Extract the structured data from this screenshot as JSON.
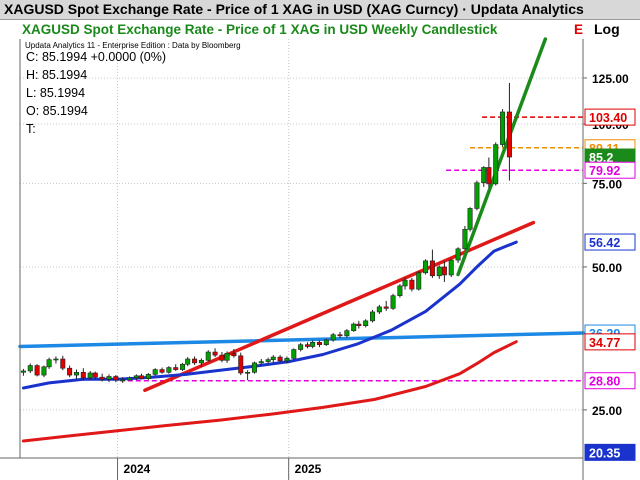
{
  "window_title": "XAGUSD Spot Exchange Rate - Price of 1 XAG in USD (XAG Curncy) · Updata Analytics",
  "chart_title": "XAGUSD Spot Exchange Rate - Price of 1 XAG in USD Weekly Candlestick",
  "chart_title_suffix": "E",
  "scale_label": "Log",
  "credit": "Updata Analytics 11 - Enterprise Edition : Data by Bloomberg",
  "ohlc": {
    "close": "C: 85.1994  +0.0000 (0%)",
    "high": "H: 85.1994",
    "low": "L: 85.1994",
    "open": "O: 85.1994",
    "time": "T:"
  },
  "colors": {
    "up": "#00a000",
    "down": "#e00000",
    "blue_ma": "#1a33cc",
    "red_ma": "#e01818",
    "green_trend": "#1a8a1a",
    "red_trend": "#e01818",
    "blue_trend": "#1e88e5",
    "orange": "#f08c00",
    "magenta": "#e000e0"
  },
  "chart_data": {
    "type": "candlestick",
    "title": "XAGUSD Spot Exchange Rate - Price of 1 XAG in USD Weekly Candlestick",
    "y_scale": "log",
    "ylim": [
      19.8,
      151
    ],
    "y_ticks": [
      25,
      50,
      75,
      100,
      125
    ],
    "y_tick_labels": [
      "25.00",
      "50.00",
      "75.00",
      "100.00",
      "125.00"
    ],
    "x_labels": [
      {
        "label": "2024",
        "t": 2024.0
      },
      {
        "label": "2025",
        "t": 2025.0
      }
    ],
    "xlim": [
      2023.43,
      2026.72
    ],
    "grid": true,
    "price_labels": [
      {
        "value": 103.4,
        "text": "103.40",
        "bg": "#ffffff",
        "fg": "#e00000",
        "border": "#e00000",
        "line": {
          "color": "#e00000",
          "style": "dashed",
          "from": 2026.13
        }
      },
      {
        "value": 89.11,
        "text": "89.11",
        "bg": "#ffffff",
        "fg": "#f08c00",
        "border": "#f08c00",
        "line": {
          "color": "#f08c00",
          "style": "dashed",
          "from": 2026.06
        }
      },
      {
        "value": 85.2,
        "text": "85.2",
        "bg": "#1a8a1a",
        "fg": "#ffffff",
        "border": "#1a8a1a"
      },
      {
        "value": 79.92,
        "text": "79.92",
        "bg": "#ffffff",
        "fg": "#e000e0",
        "border": "#e000e0",
        "line": {
          "color": "#e000e0",
          "style": "dashed",
          "from": 2025.92
        }
      },
      {
        "value": 56.42,
        "text": "56.42",
        "bg": "#ffffff",
        "fg": "#1a33cc",
        "border": "#1a33cc"
      },
      {
        "value": 36.29,
        "text": "36.29",
        "bg": "#ffffff",
        "fg": "#1e88e5",
        "border": "#1e88e5"
      },
      {
        "value": 34.77,
        "text": "34.77",
        "bg": "#ffffff",
        "fg": "#e00000",
        "border": "#e00000"
      },
      {
        "value": 28.8,
        "text": "28.80",
        "bg": "#ffffff",
        "fg": "#e000e0",
        "border": "#e000e0",
        "line": {
          "color": "#e000e0",
          "style": "dashed",
          "from": 2024.06
        }
      },
      {
        "value": 20.35,
        "text": "20.35",
        "bg": "#1a33cc",
        "fg": "#ffffff",
        "border": "#1a33cc"
      }
    ],
    "candles": [
      [
        2023.45,
        30.0,
        30.5,
        29.5,
        30.2
      ],
      [
        2023.49,
        30.2,
        31.3,
        29.9,
        31.0
      ],
      [
        2023.53,
        31.0,
        31.2,
        29.4,
        29.6
      ],
      [
        2023.57,
        29.6,
        31.0,
        29.3,
        30.8
      ],
      [
        2023.6,
        30.8,
        32.2,
        30.5,
        31.9
      ],
      [
        2023.64,
        31.9,
        32.4,
        31.3,
        32.0
      ],
      [
        2023.68,
        32.0,
        32.5,
        30.3,
        30.6
      ],
      [
        2023.72,
        30.6,
        31.0,
        29.3,
        29.6
      ],
      [
        2023.76,
        29.6,
        30.4,
        29.0,
        30.0
      ],
      [
        2023.8,
        30.0,
        30.6,
        28.8,
        29.2
      ],
      [
        2023.84,
        29.2,
        30.2,
        28.9,
        29.9
      ],
      [
        2023.87,
        29.9,
        30.1,
        29.0,
        29.3
      ],
      [
        2023.91,
        29.3,
        29.8,
        28.7,
        29.0
      ],
      [
        2023.95,
        29.0,
        29.7,
        28.6,
        29.4
      ],
      [
        2023.99,
        29.4,
        29.6,
        28.6,
        28.9
      ],
      [
        2024.03,
        28.9,
        29.3,
        28.5,
        28.9
      ],
      [
        2024.07,
        28.9,
        29.4,
        28.8,
        29.2
      ],
      [
        2024.11,
        29.2,
        29.7,
        28.9,
        29.5
      ],
      [
        2024.14,
        29.5,
        29.8,
        29.0,
        29.1
      ],
      [
        2024.18,
        29.1,
        29.9,
        28.9,
        29.7
      ],
      [
        2024.22,
        29.7,
        30.6,
        29.5,
        30.4
      ],
      [
        2024.26,
        30.4,
        30.7,
        29.8,
        30.0
      ],
      [
        2024.3,
        30.0,
        30.9,
        29.8,
        30.7
      ],
      [
        2024.34,
        30.7,
        31.2,
        30.2,
        30.4
      ],
      [
        2024.38,
        30.4,
        31.4,
        30.2,
        31.2
      ],
      [
        2024.41,
        31.2,
        32.3,
        30.9,
        32.0
      ],
      [
        2024.45,
        32.0,
        32.4,
        31.1,
        31.4
      ],
      [
        2024.49,
        31.4,
        32.1,
        30.8,
        31.8
      ],
      [
        2024.53,
        31.8,
        33.4,
        31.6,
        33.1
      ],
      [
        2024.57,
        33.1,
        33.7,
        32.3,
        32.6
      ],
      [
        2024.61,
        32.6,
        33.1,
        31.5,
        31.8
      ],
      [
        2024.64,
        31.8,
        33.2,
        31.4,
        32.9
      ],
      [
        2024.68,
        32.9,
        33.6,
        32.2,
        32.5
      ],
      [
        2024.72,
        32.5,
        33.0,
        29.6,
        29.9
      ],
      [
        2024.76,
        29.9,
        30.3,
        28.9,
        30.0
      ],
      [
        2024.8,
        30.0,
        31.6,
        29.8,
        31.4
      ],
      [
        2024.84,
        31.4,
        32.0,
        31.0,
        31.6
      ],
      [
        2024.88,
        31.6,
        32.2,
        31.3,
        31.9
      ],
      [
        2024.91,
        31.9,
        32.6,
        31.4,
        32.3
      ],
      [
        2024.95,
        32.3,
        32.6,
        31.5,
        31.7
      ],
      [
        2024.99,
        31.7,
        32.4,
        31.3,
        32.1
      ],
      [
        2025.03,
        32.1,
        33.7,
        31.9,
        33.5
      ],
      [
        2025.07,
        33.5,
        34.6,
        33.2,
        34.3
      ],
      [
        2025.11,
        34.3,
        34.7,
        33.7,
        34.0
      ],
      [
        2025.14,
        34.0,
        35.0,
        33.7,
        34.7
      ],
      [
        2025.18,
        34.7,
        35.0,
        33.9,
        34.3
      ],
      [
        2025.22,
        34.3,
        35.3,
        34.1,
        35.1
      ],
      [
        2025.26,
        35.1,
        36.3,
        34.8,
        36.0
      ],
      [
        2025.3,
        36.0,
        36.5,
        35.4,
        35.8
      ],
      [
        2025.34,
        35.8,
        37.0,
        35.5,
        36.7
      ],
      [
        2025.38,
        36.7,
        38.2,
        36.5,
        37.9
      ],
      [
        2025.41,
        37.9,
        38.5,
        37.1,
        37.6
      ],
      [
        2025.45,
        37.6,
        38.8,
        37.3,
        38.5
      ],
      [
        2025.49,
        38.5,
        40.6,
        38.2,
        40.2
      ],
      [
        2025.53,
        40.2,
        41.6,
        39.8,
        41.2
      ],
      [
        2025.57,
        41.2,
        42.4,
        40.4,
        40.9
      ],
      [
        2025.61,
        40.9,
        43.9,
        40.6,
        43.5
      ],
      [
        2025.65,
        43.5,
        46.0,
        43.1,
        45.6
      ],
      [
        2025.68,
        45.6,
        47.5,
        44.8,
        46.9
      ],
      [
        2025.72,
        46.9,
        47.4,
        44.4,
        44.9
      ],
      [
        2025.76,
        44.9,
        49.0,
        44.6,
        48.6
      ],
      [
        2025.8,
        48.6,
        51.9,
        48.2,
        51.5
      ],
      [
        2025.84,
        51.5,
        54.4,
        47.4,
        47.9
      ],
      [
        2025.88,
        47.9,
        50.4,
        47.2,
        50.0
      ],
      [
        2025.91,
        50.0,
        51.4,
        46.5,
        48.1
      ],
      [
        2025.95,
        48.1,
        52.0,
        47.6,
        51.7
      ],
      [
        2025.99,
        51.7,
        55.0,
        51.0,
        54.6
      ],
      [
        2026.03,
        54.6,
        61.0,
        54.2,
        60.0
      ],
      [
        2026.06,
        60.0,
        66.8,
        59.4,
        66.4
      ],
      [
        2026.1,
        66.4,
        76.0,
        65.8,
        75.2
      ],
      [
        2026.14,
        75.2,
        81.5,
        73.7,
        81.0
      ],
      [
        2026.17,
        81.0,
        85.0,
        73.5,
        74.8
      ],
      [
        2026.21,
        74.8,
        91.5,
        74.2,
        90.5
      ],
      [
        2026.25,
        90.5,
        107.5,
        89.5,
        106.0
      ],
      [
        2026.29,
        106.0,
        122.0,
        76.0,
        85.2
      ]
    ],
    "series": [
      {
        "name": "",
        "color": "#1a33cc",
        "type": "line",
        "x": [
          2023.45,
          2023.6,
          2023.8,
          2024.0,
          2024.2,
          2024.4,
          2024.6,
          2024.8,
          2025.0,
          2025.2,
          2025.4,
          2025.6,
          2025.8,
          2026.0,
          2026.1,
          2026.2,
          2026.33
        ],
        "y": [
          27.8,
          28.5,
          29.0,
          29.0,
          29.3,
          29.7,
          30.3,
          30.9,
          31.6,
          32.7,
          34.4,
          36.8,
          40.3,
          46.0,
          50.0,
          54.0,
          56.4
        ]
      },
      {
        "name": "",
        "color": "#e01818",
        "type": "line",
        "x": [
          2023.45,
          2023.7,
          2024.0,
          2024.3,
          2024.6,
          2024.9,
          2025.2,
          2025.5,
          2025.8,
          2026.0,
          2026.1,
          2026.2,
          2026.33
        ],
        "y": [
          21.5,
          22.0,
          22.6,
          23.2,
          23.8,
          24.5,
          25.3,
          26.3,
          28.0,
          29.8,
          31.3,
          33.0,
          34.8
        ]
      }
    ],
    "trendlines": [
      {
        "color": "#1e88e5",
        "x": [
          2023.43,
          2026.72
        ],
        "y": [
          34.0,
          36.3
        ]
      },
      {
        "color": "#e01818",
        "x": [
          2024.16,
          2026.43
        ],
        "y": [
          27.5,
          62.0
        ]
      },
      {
        "color": "#1a8a1a",
        "x": [
          2025.99,
          2026.5
        ],
        "y": [
          48.2,
          151.0
        ]
      }
    ]
  }
}
